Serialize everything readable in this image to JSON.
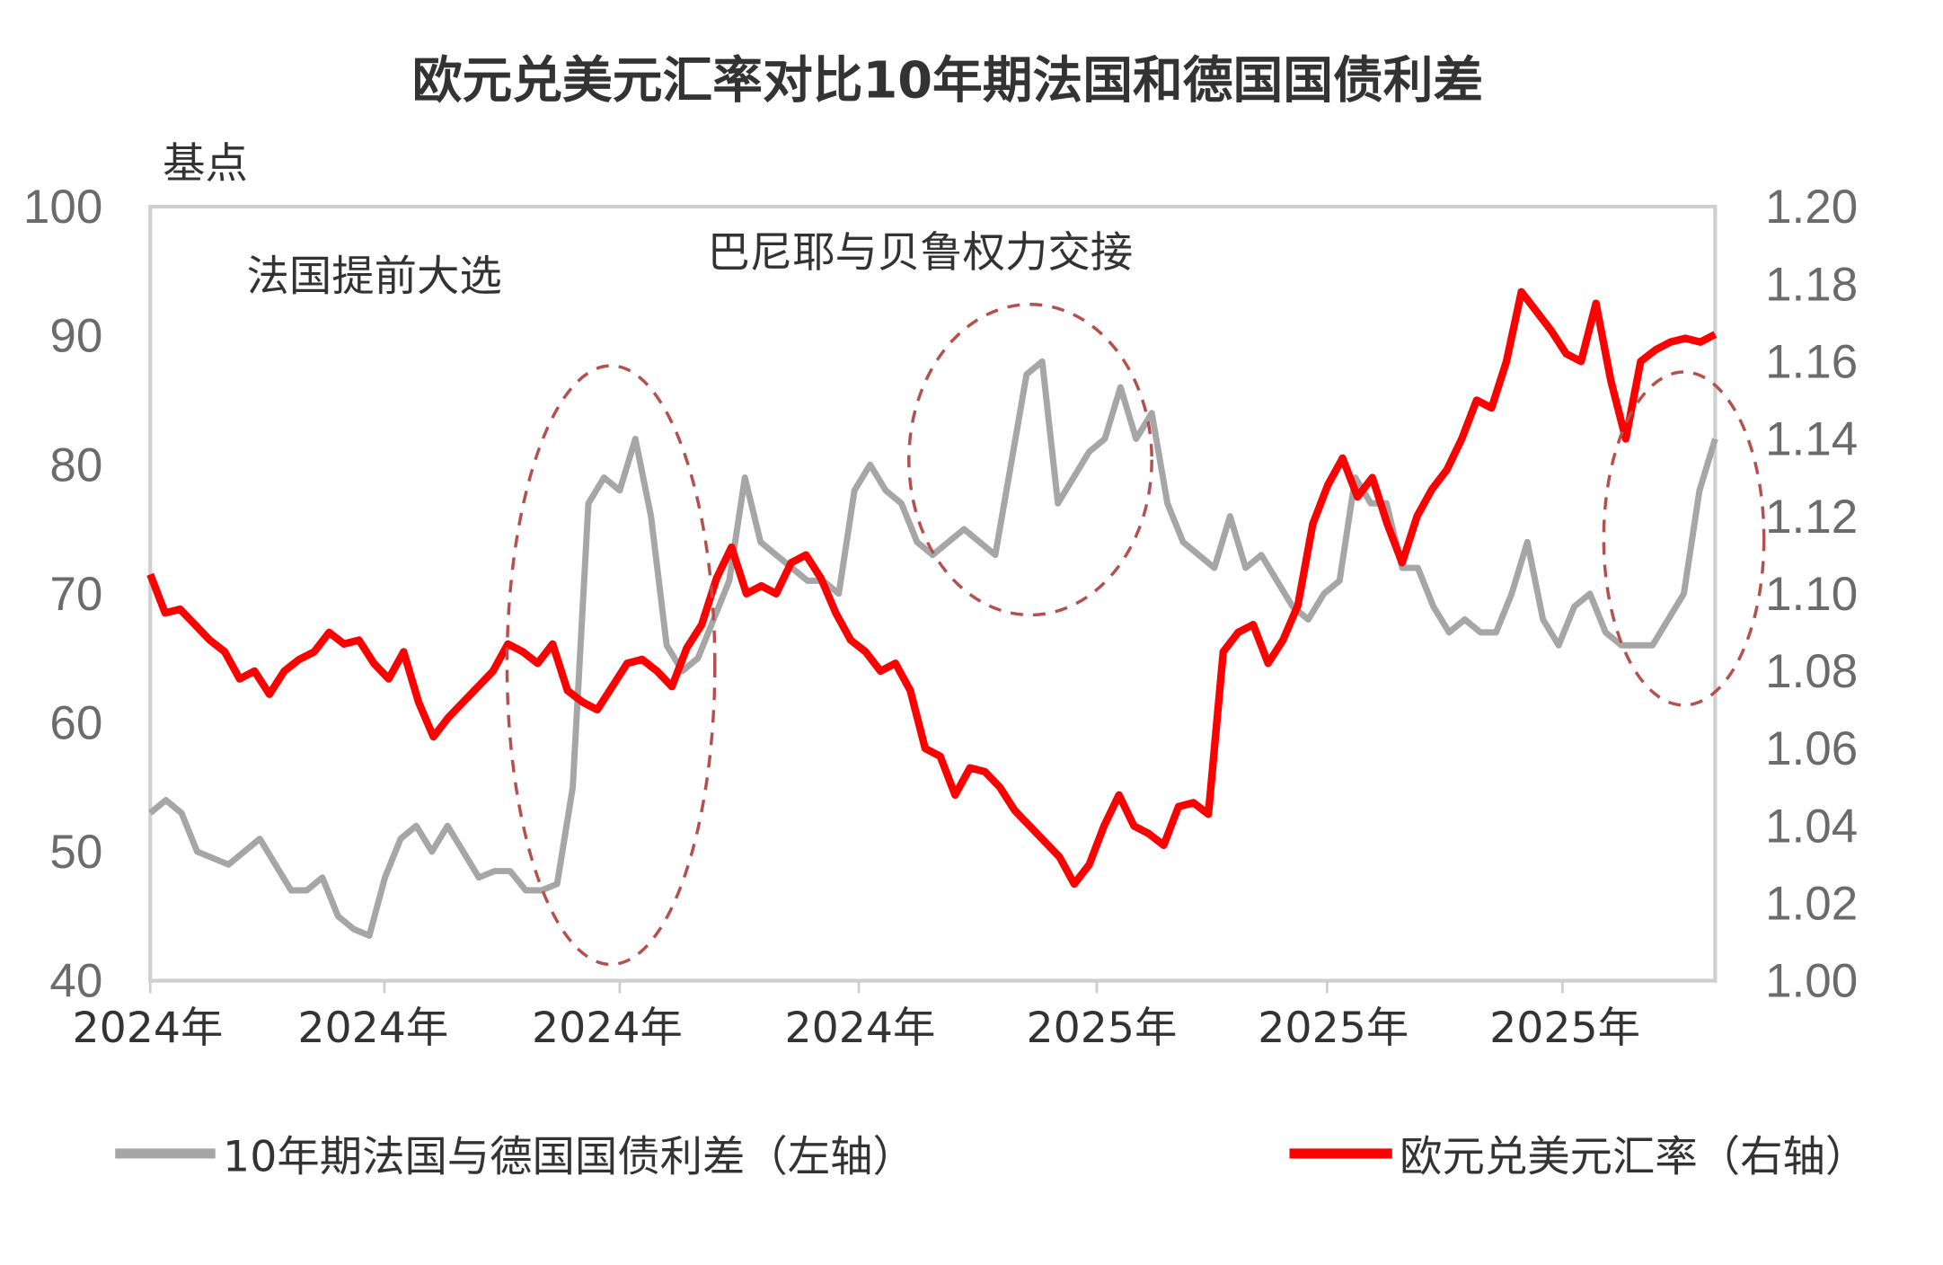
{
  "chart_data": {
    "type": "line",
    "title": "欧元兑美元汇率对比10年期法国和德国国债利差",
    "y_left_label": "基点",
    "y_left_range": [
      40,
      100
    ],
    "y_left_ticks": [
      "40",
      "50",
      "60",
      "70",
      "80",
      "90",
      "100"
    ],
    "y_right_range": [
      1.0,
      1.2
    ],
    "y_right_ticks": [
      "1.00",
      "1.02",
      "1.04",
      "1.06",
      "1.08",
      "1.10",
      "1.12",
      "1.14",
      "1.16",
      "1.18",
      "1.20"
    ],
    "x_ticks": [
      "2024年",
      "2024年",
      "2024年",
      "2024年",
      "2025年",
      "2025年",
      "2025年"
    ],
    "grid": false,
    "legend_position": "bottom",
    "annotations": [
      "法国提前大选",
      "巴尼耶与贝鲁权力交接"
    ],
    "series": [
      {
        "name": "10年期法国与德国国债利差（左轴）",
        "axis": "left",
        "color": "#a6a6a6",
        "values": [
          53,
          54,
          53,
          50,
          49.5,
          49,
          50,
          51,
          49,
          47,
          47,
          48,
          45,
          44,
          43.5,
          48,
          51,
          52,
          50,
          52,
          50,
          48,
          48.5,
          48.5,
          47,
          47,
          47.5,
          55,
          77,
          79,
          78,
          82,
          76,
          66,
          64,
          65,
          68,
          71,
          79,
          74,
          73,
          72,
          71,
          71,
          70,
          78,
          80,
          78,
          77,
          74,
          73,
          74,
          75,
          74,
          73,
          80,
          87,
          88,
          77,
          79,
          81,
          82,
          86,
          82,
          84,
          77,
          74,
          73,
          72,
          76,
          72,
          73,
          71,
          69,
          68,
          70,
          71,
          79,
          77,
          77,
          72,
          72,
          69,
          67,
          68,
          67,
          67,
          70,
          74,
          68,
          66,
          69,
          70,
          67,
          66,
          66,
          66,
          68,
          70,
          78,
          82
        ]
      },
      {
        "name": "欧元兑美元汇率（右轴）",
        "axis": "right",
        "color": "#ff0000",
        "values": [
          1.105,
          1.095,
          1.096,
          1.092,
          1.088,
          1.085,
          1.078,
          1.08,
          1.074,
          1.08,
          1.083,
          1.085,
          1.09,
          1.087,
          1.088,
          1.082,
          1.078,
          1.085,
          1.072,
          1.063,
          1.068,
          1.072,
          1.076,
          1.08,
          1.087,
          1.085,
          1.082,
          1.087,
          1.075,
          1.072,
          1.07,
          1.076,
          1.082,
          1.083,
          1.08,
          1.076,
          1.086,
          1.092,
          1.104,
          1.112,
          1.1,
          1.102,
          1.1,
          1.108,
          1.11,
          1.104,
          1.095,
          1.088,
          1.085,
          1.08,
          1.082,
          1.075,
          1.06,
          1.058,
          1.048,
          1.055,
          1.054,
          1.05,
          1.044,
          1.04,
          1.036,
          1.032,
          1.025,
          1.03,
          1.04,
          1.048,
          1.04,
          1.038,
          1.035,
          1.045,
          1.046,
          1.043,
          1.085,
          1.09,
          1.092,
          1.082,
          1.088,
          1.097,
          1.118,
          1.128,
          1.135,
          1.125,
          1.13,
          1.118,
          1.108,
          1.12,
          1.127,
          1.132,
          1.14,
          1.15,
          1.148,
          1.16,
          1.178,
          1.173,
          1.168,
          1.162,
          1.16,
          1.175,
          1.155,
          1.14,
          1.16,
          1.163,
          1.165,
          1.166,
          1.165,
          1.167
        ]
      }
    ]
  }
}
